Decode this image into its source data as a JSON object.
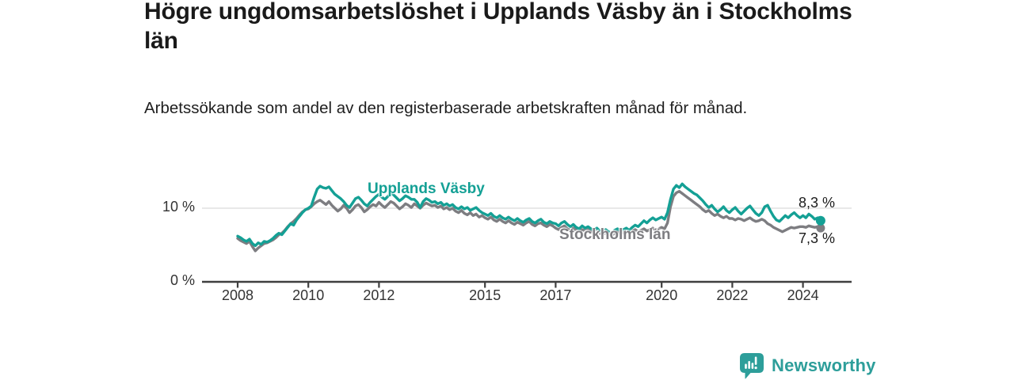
{
  "chart_data": {
    "type": "line",
    "title": "Högre ungdomsarbetslöshet i Upplands Väsby än i Stockholms län",
    "subtitle": "Arbetssökande som andel av den registerbaserade arbetskraften månad för månad.",
    "unit": "%",
    "grid": "horizontal-10-only",
    "legend_position": "inline-labels-on-chart",
    "x_axis": {
      "start_year": 2008,
      "interval_months": 1,
      "end_label_period": "mid 2024",
      "tick_years": [
        2008,
        2010,
        2012,
        2015,
        2017,
        2020,
        2022,
        2024
      ]
    },
    "y_axis": {
      "min": 0,
      "max": 14,
      "ticks": [
        {
          "value": 0,
          "label": "0 %"
        },
        {
          "value": 10,
          "label": "10 %"
        }
      ]
    },
    "series": [
      {
        "name": "Upplands Väsby",
        "color": "#14a095",
        "end_label": "8,3 %",
        "end_value": 8.3,
        "values": [
          6.2,
          6.0,
          5.7,
          5.5,
          5.8,
          5.2,
          4.9,
          5.3,
          5.1,
          5.5,
          5.4,
          5.6,
          5.9,
          6.3,
          6.6,
          6.4,
          6.9,
          7.4,
          7.9,
          7.7,
          8.4,
          8.9,
          9.4,
          9.8,
          10.0,
          10.3,
          11.5,
          12.6,
          13.0,
          12.8,
          12.7,
          12.9,
          12.4,
          11.9,
          11.6,
          11.3,
          10.9,
          10.4,
          10.1,
          10.7,
          11.3,
          11.5,
          11.1,
          10.6,
          10.3,
          10.8,
          11.2,
          11.6,
          11.9,
          11.5,
          11.2,
          11.6,
          12.1,
          11.8,
          11.4,
          11.0,
          11.3,
          11.7,
          11.5,
          11.2,
          11.2,
          10.8,
          10.1,
          10.9,
          11.3,
          11.1,
          10.8,
          10.9,
          10.6,
          10.8,
          10.4,
          10.6,
          10.3,
          10.5,
          10.1,
          9.9,
          10.2,
          9.9,
          10.1,
          9.7,
          9.9,
          10.1,
          9.7,
          9.4,
          9.2,
          9.0,
          9.3,
          8.9,
          8.7,
          9.0,
          8.7,
          8.5,
          8.8,
          8.5,
          8.3,
          8.6,
          8.3,
          8.1,
          8.4,
          8.6,
          8.2,
          8.0,
          8.3,
          8.5,
          8.1,
          7.9,
          8.2,
          8.0,
          7.9,
          7.6,
          8.0,
          8.2,
          7.8,
          7.5,
          7.8,
          7.4,
          7.2,
          7.6,
          7.3,
          7.5,
          7.2,
          7.0,
          7.3,
          6.9,
          6.7,
          7.1,
          6.8,
          6.6,
          7.0,
          7.2,
          6.9,
          7.1,
          7.3,
          7.0,
          7.4,
          7.7,
          7.5,
          7.9,
          8.3,
          8.0,
          8.4,
          8.7,
          8.4,
          8.6,
          8.8,
          8.5,
          9.4,
          11.2,
          12.6,
          13.1,
          12.8,
          13.3,
          12.9,
          12.6,
          12.3,
          12.0,
          11.8,
          11.4,
          11.0,
          10.5,
          10.1,
          10.4,
          9.9,
          9.5,
          9.8,
          10.2,
          9.7,
          9.4,
          9.8,
          10.1,
          9.6,
          9.2,
          9.6,
          10.0,
          10.3,
          9.8,
          9.3,
          9.0,
          9.4,
          10.2,
          10.4,
          9.6,
          8.9,
          8.4,
          8.2,
          8.6,
          9.0,
          8.7,
          9.1,
          9.4,
          9.0,
          8.7,
          9.0,
          8.7,
          9.2,
          8.9,
          8.5,
          8.7,
          8.3
        ]
      },
      {
        "name": "Stockholms län",
        "color": "#7d7d81",
        "end_label": "7,3 %",
        "end_value": 7.3,
        "values": [
          5.9,
          5.6,
          5.4,
          5.2,
          5.5,
          4.8,
          4.2,
          4.6,
          4.9,
          5.2,
          5.3,
          5.5,
          5.7,
          6.0,
          6.4,
          6.6,
          7.0,
          7.5,
          7.9,
          8.2,
          8.6,
          9.1,
          9.5,
          9.8,
          9.9,
          10.2,
          10.6,
          10.9,
          11.1,
          10.8,
          10.5,
          10.9,
          10.4,
          10.0,
          9.6,
          9.9,
          10.4,
          10.0,
          9.4,
          9.8,
          10.3,
          10.5,
          10.1,
          9.5,
          9.8,
          10.2,
          10.5,
          10.3,
          10.8,
          10.4,
          10.1,
          10.5,
          10.9,
          10.7,
          10.3,
          9.9,
          10.2,
          10.6,
          10.4,
          10.1,
          10.6,
          10.3,
          10.0,
          10.4,
          10.7,
          10.5,
          10.3,
          10.4,
          10.1,
          10.3,
          9.9,
          10.1,
          9.8,
          10.0,
          9.6,
          9.4,
          9.7,
          9.3,
          9.1,
          9.4,
          9.0,
          9.2,
          8.8,
          9.0,
          8.7,
          8.5,
          8.8,
          8.4,
          8.2,
          8.5,
          8.2,
          8.0,
          8.3,
          8.0,
          7.8,
          8.1,
          7.9,
          7.7,
          8.0,
          8.2,
          7.8,
          7.6,
          7.9,
          8.0,
          7.7,
          7.5,
          7.8,
          7.6,
          7.3,
          7.1,
          7.4,
          7.6,
          7.2,
          7.0,
          7.3,
          7.0,
          6.8,
          7.1,
          6.9,
          7.1,
          6.9,
          6.7,
          7.0,
          6.6,
          6.4,
          6.7,
          6.5,
          6.3,
          6.6,
          6.8,
          6.5,
          6.7,
          6.8,
          6.6,
          6.9,
          7.1,
          6.8,
          7.0,
          7.2,
          6.9,
          7.1,
          7.3,
          7.0,
          7.2,
          7.4,
          7.2,
          8.0,
          10.2,
          11.6,
          12.1,
          12.3,
          12.0,
          11.7,
          11.4,
          11.1,
          10.8,
          10.5,
          10.2,
          9.8,
          9.5,
          9.7,
          9.3,
          9.0,
          9.2,
          8.9,
          8.7,
          8.9,
          8.6,
          8.6,
          8.4,
          8.6,
          8.5,
          8.3,
          8.5,
          8.7,
          8.4,
          8.2,
          8.3,
          8.5,
          8.3,
          7.9,
          7.7,
          7.4,
          7.2,
          7.0,
          6.8,
          7.0,
          7.2,
          7.4,
          7.3,
          7.4,
          7.5,
          7.5,
          7.4,
          7.6,
          7.5,
          7.4,
          7.5,
          7.3
        ]
      }
    ],
    "colors": {
      "axis": "#3f3f3f",
      "gridline": "#d9d9d9",
      "value_label": "#1c1c1c"
    }
  },
  "footer": {
    "brand": "Newsworthy",
    "brand_color": "#2d9e9a",
    "logo_icon": "bar-chart-speech-bubble-icon"
  }
}
